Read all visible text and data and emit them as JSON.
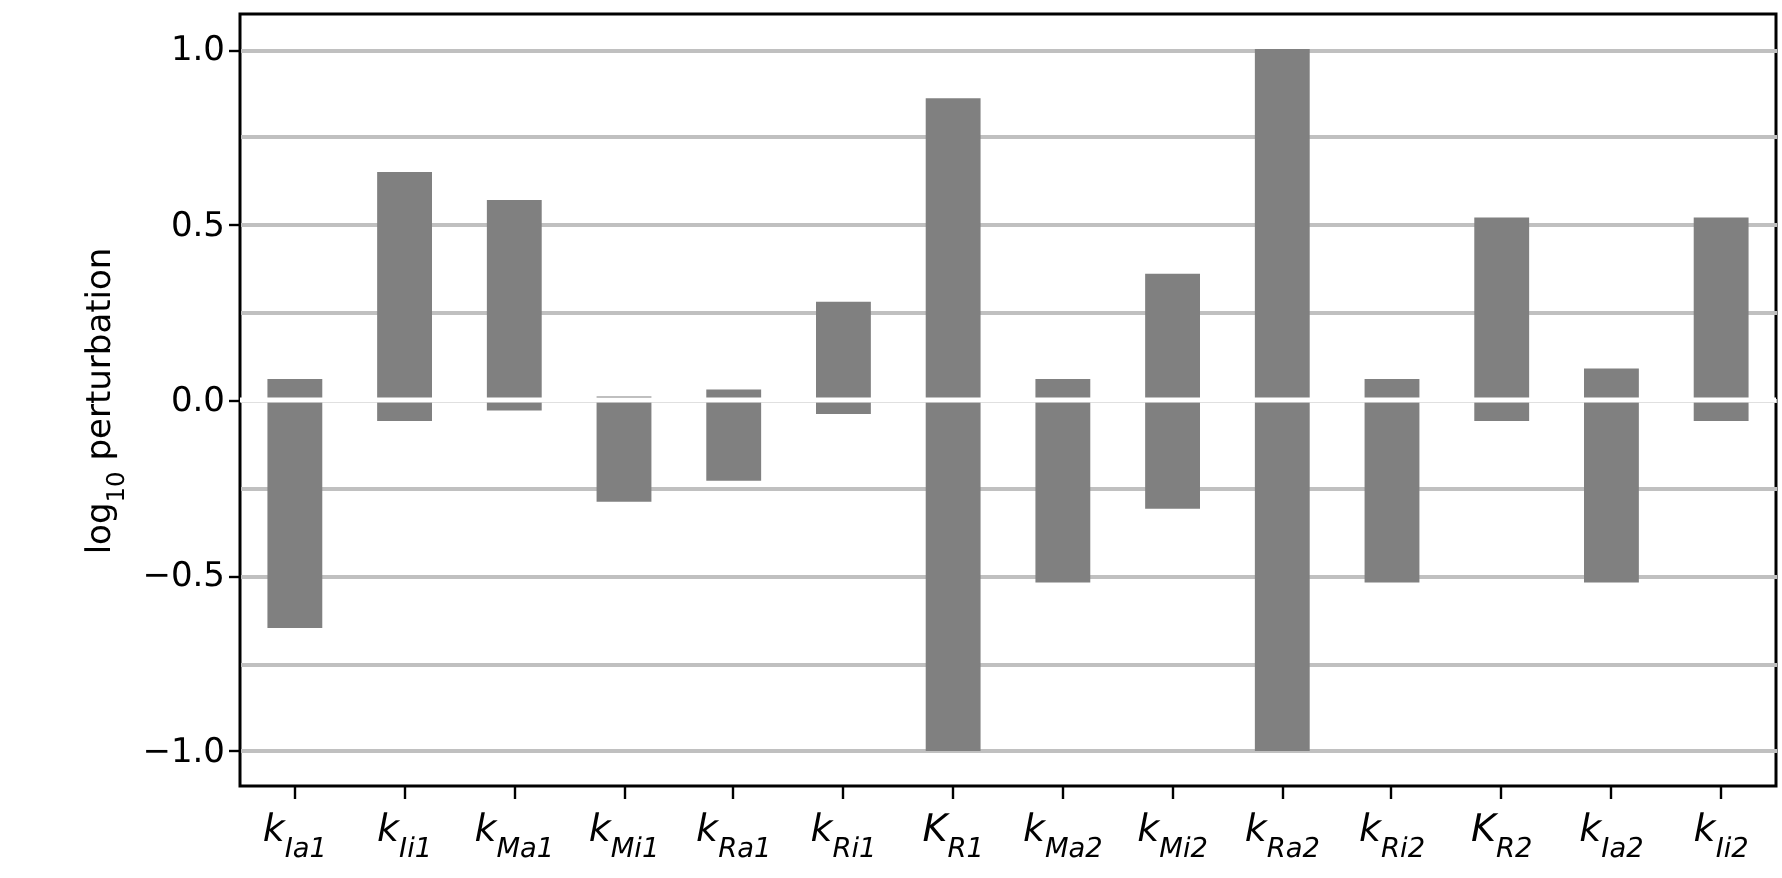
{
  "chart_data": {
    "type": "bar",
    "ylabel": "log$_{10}$ perturbation",
    "categories": [
      "k$_{Ia1}$",
      "k$_{Ii1}$",
      "k$_{Ma1}$",
      "k$_{Mi1}$",
      "k$_{Ra1}$",
      "k$_{Ri1}$",
      "K$_{R1}$",
      "k$_{Ma2}$",
      "k$_{Mi2}$",
      "k$_{Ra2}$",
      "k$_{Ri2}$",
      "K$_{R2}$",
      "k$_{Ia2}$",
      "k$_{Ii2}$"
    ],
    "base": [
      -0.65,
      -0.06,
      -0.03,
      -0.29,
      -0.23,
      -0.04,
      -1.0,
      -0.52,
      -0.31,
      -1.0,
      -0.52,
      -0.06,
      -0.52,
      -0.06
    ],
    "values": [
      0.71,
      0.71,
      0.6,
      0.3,
      0.26,
      0.32,
      1.86,
      0.58,
      0.67,
      2.0,
      0.58,
      0.58,
      0.61,
      0.58
    ],
    "color": "#808080",
    "ylim": [
      -1.1,
      1.1
    ],
    "yticks": [
      {
        "value": -1.0,
        "label": "−1.0"
      },
      {
        "value": -0.75,
        "label": null
      },
      {
        "value": -0.5,
        "label": "−0.5"
      },
      {
        "value": -0.25,
        "label": null
      },
      {
        "value": 0.0,
        "label": "0.0"
      },
      {
        "value": 0.25,
        "label": null
      },
      {
        "value": 0.5,
        "label": "0.5"
      },
      {
        "value": 0.75,
        "label": null
      },
      {
        "value": 1.0,
        "label": "1.0"
      }
    ],
    "grid": "y",
    "ref_lines": [
      {
        "axis": "y",
        "value": 0.0,
        "color": "#ffffff"
      }
    ]
  }
}
